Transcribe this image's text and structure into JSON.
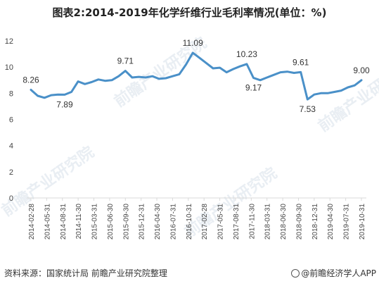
{
  "title": "图表2:2014-2019年化学纤维行业毛利率情况(单位：%)",
  "source": "资料来源：国家统计局 前瞻产业研究院整理",
  "credit": "@前瞻经济学人APP",
  "watermark": "前瞻产业研究院",
  "colors": {
    "line": "#4a90c8",
    "axis": "#d9d9d9",
    "text": "#333333"
  },
  "chart_data": {
    "type": "line",
    "title": "图表2:2014-2019年化学纤维行业毛利率情况(单位：%)",
    "xlabel": "",
    "ylabel": "",
    "ylim": [
      0,
      12
    ],
    "yticks": [
      0,
      2,
      4,
      6,
      8,
      10,
      12
    ],
    "grid": false,
    "xtick_labels": [
      "2014-02-28",
      "2014-05-31",
      "2014-08-31",
      "2014-11-30",
      "2015-03-31",
      "2015-06-30",
      "2015-09-30",
      "2015-12-31",
      "2016-04-30",
      "2016-07-31",
      "2016-10-31",
      "2017-02-28",
      "2017-05-31",
      "2017-08-31",
      "2017-11-30",
      "2018-03-31",
      "2018-06-30",
      "2018-09-30",
      "2018-12-31",
      "2019-04-30",
      "2019-07-31",
      "2019-10-31"
    ],
    "series": [
      {
        "values": [
          8.26,
          7.8,
          7.65,
          7.85,
          7.9,
          7.89,
          8.1,
          8.9,
          8.7,
          8.85,
          9.05,
          8.95,
          9.0,
          9.3,
          9.71,
          9.2,
          9.25,
          9.2,
          9.3,
          9.1,
          9.15,
          9.3,
          9.45,
          10.2,
          11.09,
          10.7,
          10.3,
          9.9,
          9.95,
          9.6,
          9.85,
          10.05,
          10.23,
          9.17,
          9.0,
          9.2,
          9.4,
          9.6,
          9.65,
          9.55,
          9.61,
          7.53,
          7.9,
          8.0,
          8.0,
          8.1,
          8.2,
          8.45,
          8.6,
          9.0
        ]
      }
    ],
    "annotations": [
      {
        "index": 0,
        "label": "8.26",
        "pos": "above"
      },
      {
        "index": 5,
        "label": "7.89",
        "pos": "below"
      },
      {
        "index": 14,
        "label": "9.71",
        "pos": "above"
      },
      {
        "index": 24,
        "label": "11.09",
        "pos": "above"
      },
      {
        "index": 32,
        "label": "10.23",
        "pos": "above"
      },
      {
        "index": 33,
        "label": "9.17",
        "pos": "below"
      },
      {
        "index": 40,
        "label": "9.61",
        "pos": "above"
      },
      {
        "index": 41,
        "label": "7.53",
        "pos": "below"
      },
      {
        "index": 49,
        "label": "9.00",
        "pos": "above"
      }
    ]
  }
}
